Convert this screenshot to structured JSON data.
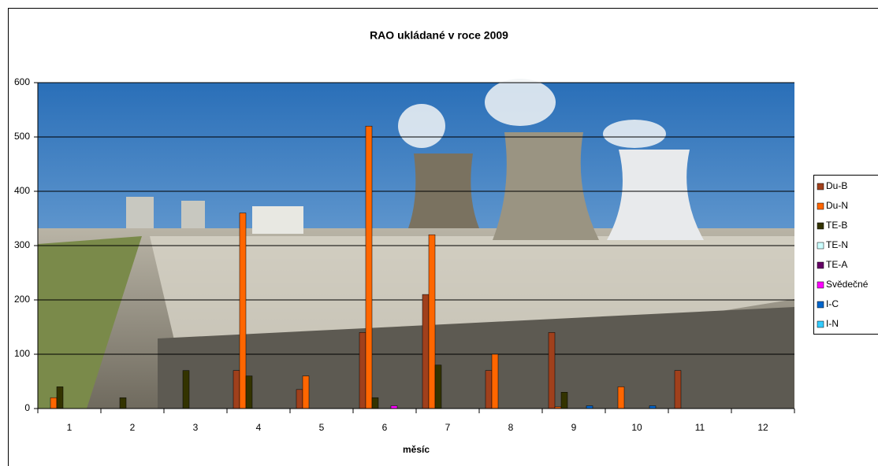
{
  "chart_data": {
    "type": "bar",
    "title": "RAO ukládané v roce 2009",
    "x_label": "měsíc",
    "categories": [
      "1",
      "2",
      "3",
      "4",
      "5",
      "6",
      "7",
      "8",
      "9",
      "10",
      "11",
      "12"
    ],
    "series": [
      {
        "name": "Du-B",
        "color": "#a0401c",
        "values": [
          0,
          0,
          0,
          70,
          35,
          140,
          210,
          70,
          140,
          0,
          70,
          0
        ]
      },
      {
        "name": "Du-N",
        "color": "#ff6600",
        "values": [
          20,
          0,
          0,
          360,
          60,
          520,
          320,
          100,
          3,
          40,
          0,
          0
        ]
      },
      {
        "name": "TE-B",
        "color": "#333300",
        "values": [
          40,
          20,
          70,
          60,
          0,
          20,
          80,
          0,
          30,
          0,
          0,
          0
        ]
      },
      {
        "name": "TE-N",
        "color": "#ccffff",
        "values": [
          0,
          0,
          0,
          0,
          0,
          0,
          0,
          0,
          0,
          0,
          0,
          0
        ]
      },
      {
        "name": "TE-A",
        "color": "#660066",
        "values": [
          0,
          0,
          0,
          0,
          0,
          0,
          0,
          0,
          0,
          0,
          0,
          0
        ]
      },
      {
        "name": "Svědečné",
        "color": "#ff00ff",
        "values": [
          0,
          0,
          0,
          0,
          0,
          5,
          0,
          0,
          0,
          0,
          0,
          0
        ]
      },
      {
        "name": "I-C",
        "color": "#0066cc",
        "values": [
          0,
          0,
          0,
          0,
          0,
          0,
          0,
          0,
          5,
          5,
          0,
          0
        ]
      },
      {
        "name": "I-N",
        "color": "#33ccff",
        "values": [
          0,
          0,
          0,
          0,
          0,
          0,
          0,
          0,
          0,
          0,
          0,
          0
        ]
      }
    ],
    "ylim": [
      0,
      600
    ],
    "yticks": [
      0,
      100,
      200,
      300,
      400,
      500,
      600
    ],
    "grid": true,
    "legend": "right"
  }
}
